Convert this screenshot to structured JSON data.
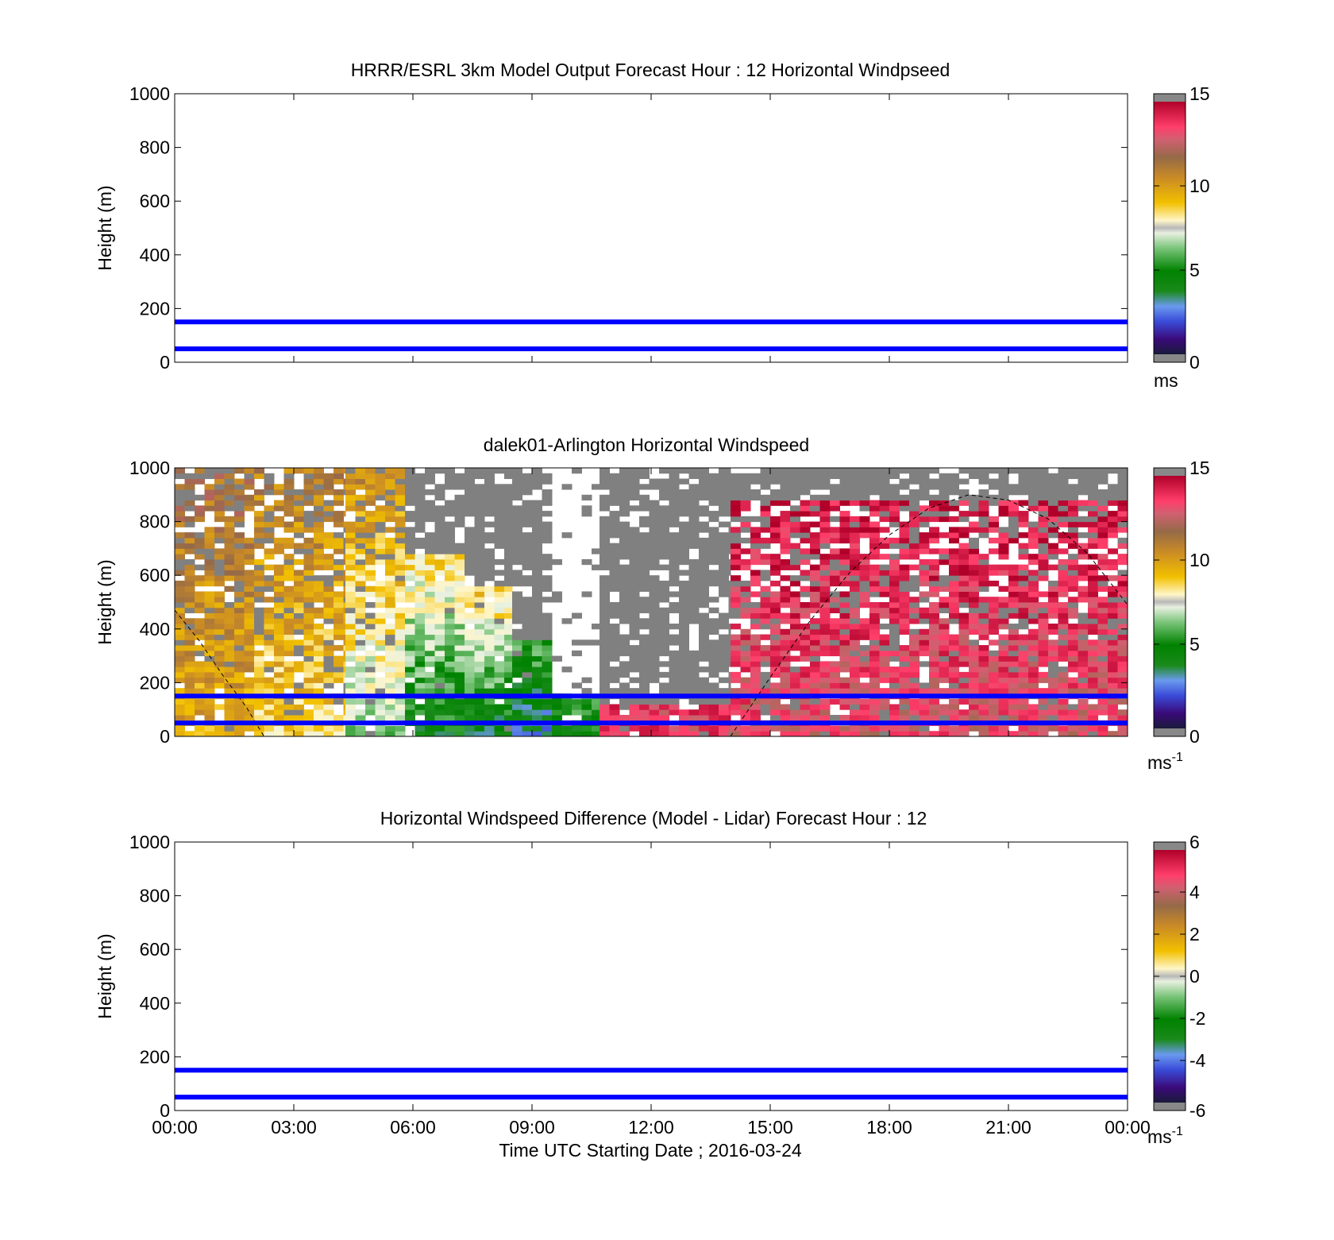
{
  "figure": {
    "xlabel": "Time UTC  Starting Date ; 2016-03-24",
    "x_ticks": [
      "00:00",
      "03:00",
      "06:00",
      "09:00",
      "12:00",
      "15:00",
      "18:00",
      "21:00",
      "00:00"
    ]
  },
  "chart_data": [
    {
      "type": "heatmap",
      "title": "HRRR/ESRL 3km Model Output   Forecast Hour : 12 Horizontal Windpseed",
      "ylabel": "Height (m)",
      "ylim": [
        0,
        1000
      ],
      "y_ticks": [
        "0",
        "200",
        "400",
        "600",
        "800",
        "1000"
      ],
      "xlim_hours": [
        0,
        24
      ],
      "grid": false,
      "data": "empty",
      "reference_lines_m": [
        50,
        150
      ],
      "reference_line_color": "#0000ff",
      "colorbar": {
        "range": [
          0,
          15
        ],
        "ticks": [
          "0",
          "5",
          "10",
          "15"
        ],
        "unit": "ms",
        "unit_sup": ""
      }
    },
    {
      "type": "heatmap",
      "title": "dalek01-Arlington  Horizontal Windspeed",
      "ylabel": "Height (m)",
      "ylim": [
        0,
        1000
      ],
      "y_ticks": [
        "0",
        "200",
        "400",
        "600",
        "800",
        "1000"
      ],
      "xlim_hours": [
        0,
        24
      ],
      "grid": false,
      "reference_lines_m": [
        50,
        150
      ],
      "reference_line_color": "#0000ff",
      "colorbar": {
        "range": [
          0,
          15
        ],
        "ticks": [
          "0",
          "5",
          "10",
          "15"
        ],
        "unit": "ms",
        "unit_sup": "-1"
      },
      "overlay": "dashed curve (boundary layer estimate), descending from ~470 m at 00:00 to 0 at ~02:15, rising from ~14:00 to ~900 m at ~20:00 and back to ~490 m at 24:00",
      "regimes": [
        {
          "t0": 0.0,
          "t1": 2.0,
          "zmax": 1000,
          "base_speed": 9.5,
          "top_speed": 11.5,
          "missing": 0.4,
          "above": "mixed"
        },
        {
          "t0": 2.0,
          "t1": 4.3,
          "zmax": 1000,
          "base_speed": 8.5,
          "top_speed": 11.0,
          "missing": 0.45,
          "above": "mixed"
        },
        {
          "t0": 4.3,
          "t1": 5.8,
          "zmax": 1000,
          "base_speed": 6.5,
          "top_speed": 10.5,
          "missing": 0.3,
          "above": "mixed"
        },
        {
          "t0": 5.8,
          "t1": 7.3,
          "zmax": 680,
          "base_speed": 4.5,
          "top_speed": 8.5,
          "missing": 0.1,
          "above": "gray"
        },
        {
          "t0": 7.3,
          "t1": 8.5,
          "zmax": 560,
          "base_speed": 4.0,
          "top_speed": 9.0,
          "missing": 0.1,
          "above": "gray"
        },
        {
          "t0": 8.5,
          "t1": 9.5,
          "zmax": 350,
          "base_speed": 3.0,
          "top_speed": 6.0,
          "missing": 0.1,
          "above": "gray"
        },
        {
          "t0": 9.5,
          "t1": 10.7,
          "zmax": 150,
          "base_speed": 4.5,
          "top_speed": 6.0,
          "missing": 0.2,
          "above": "white"
        },
        {
          "t0": 10.7,
          "t1": 14.0,
          "zmax": 120,
          "base_speed": 13.5,
          "top_speed": 13.5,
          "missing": 0.45,
          "above": "gray"
        },
        {
          "t0": 14.0,
          "t1": 24.0,
          "zmax": 880,
          "base_speed": 13.0,
          "top_speed": 14.5,
          "missing": 0.45,
          "above": "gray"
        }
      ]
    },
    {
      "type": "heatmap",
      "title": "Horizontal Windspeed Difference (Model - Lidar) Forecast Hour : 12",
      "ylabel": "Height (m)",
      "ylim": [
        0,
        1000
      ],
      "y_ticks": [
        "0",
        "200",
        "400",
        "600",
        "800",
        "1000"
      ],
      "xlim_hours": [
        0,
        24
      ],
      "grid": false,
      "data": "empty",
      "reference_lines_m": [
        50,
        150
      ],
      "reference_line_color": "#0000ff",
      "colorbar": {
        "range": [
          -6,
          6
        ],
        "ticks": [
          "-6",
          "-4",
          "-2",
          "0",
          "2",
          "4",
          "6"
        ],
        "unit": "ms",
        "unit_sup": "-1"
      }
    }
  ]
}
